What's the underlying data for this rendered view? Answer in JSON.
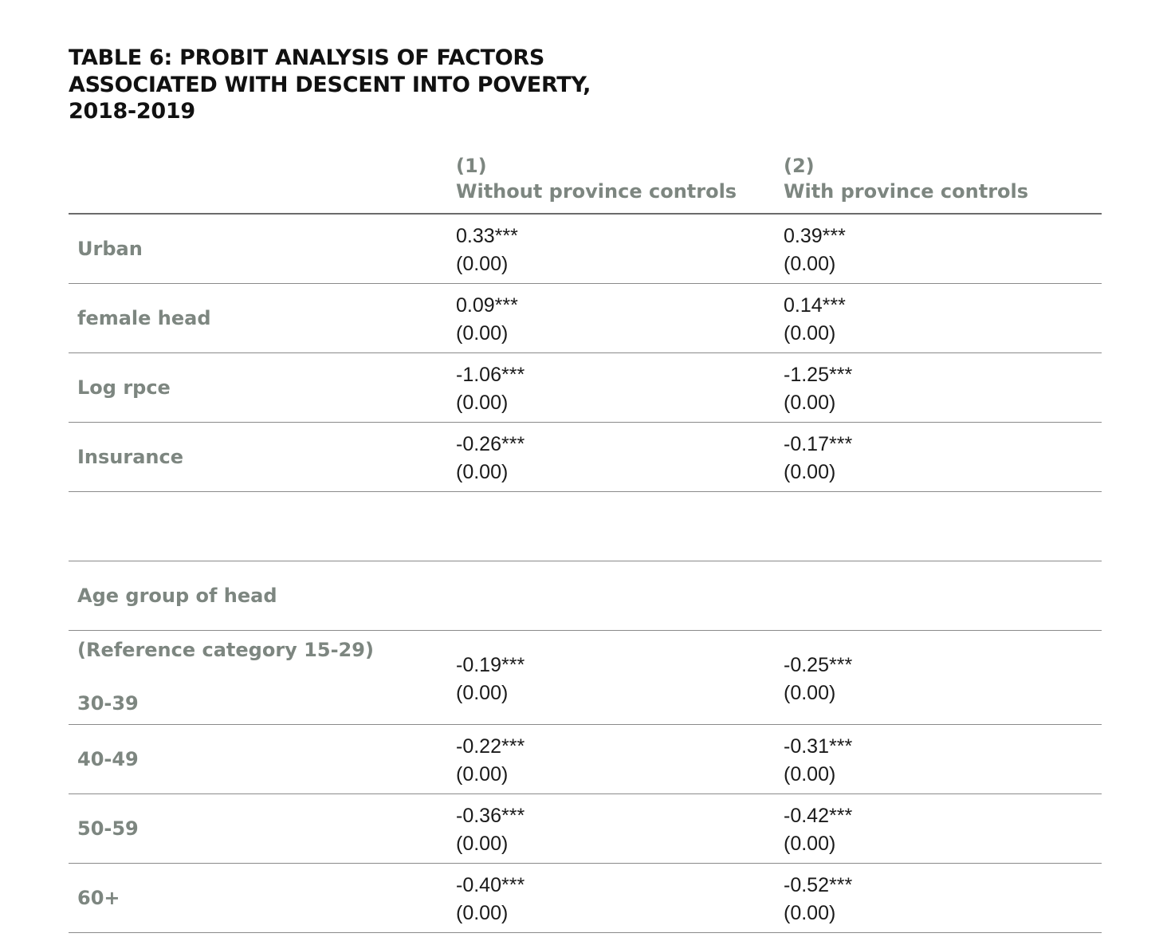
{
  "title_lines": [
    "TABLE 6: PROBIT ANALYSIS OF FACTORS",
    "ASSOCIATED WITH DESCENT INTO POVERTY,",
    "2018-2019"
  ],
  "columns": [
    {
      "number": "(1)",
      "label": "Without province controls"
    },
    {
      "number": "(2)",
      "label": "With province controls"
    }
  ],
  "rows": {
    "urban": {
      "label": "Urban",
      "c1": {
        "coef": "0.33***",
        "se": "(0.00)"
      },
      "c2": {
        "coef": "0.39***",
        "se": "(0.00)"
      }
    },
    "female_head": {
      "label": "female head",
      "c1": {
        "coef": "0.09***",
        "se": "(0.00)"
      },
      "c2": {
        "coef": "0.14***",
        "se": "(0.00)"
      }
    },
    "log_rpce": {
      "label": "Log rpce",
      "c1": {
        "coef": "-1.06***",
        "se": "(0.00)"
      },
      "c2": {
        "coef": "-1.25***",
        "se": "(0.00)"
      }
    },
    "insurance": {
      "label": "Insurance",
      "c1": {
        "coef": "-0.26***",
        "se": "(0.00)"
      },
      "c2": {
        "coef": "-0.17***",
        "se": "(0.00)"
      }
    },
    "age_group_header": {
      "label": "Age group of head"
    },
    "age_30_39": {
      "reference_label": "(Reference category 15-29)",
      "label": "30-39",
      "c1": {
        "coef": "-0.19***",
        "se": "(0.00)"
      },
      "c2": {
        "coef": "-0.25***",
        "se": "(0.00)"
      }
    },
    "age_40_49": {
      "label": "40-49",
      "c1": {
        "coef": "-0.22***",
        "se": "(0.00)"
      },
      "c2": {
        "coef": "-0.31***",
        "se": "(0.00)"
      }
    },
    "age_50_59": {
      "label": "50-59",
      "c1": {
        "coef": "-0.36***",
        "se": "(0.00)"
      },
      "c2": {
        "coef": "-0.42***",
        "se": "(0.00)"
      }
    },
    "age_60_plus": {
      "label": "60+",
      "c1": {
        "coef": "-0.40***",
        "se": "(0.00)"
      },
      "c2": {
        "coef": "-0.52***",
        "se": "(0.00)"
      }
    }
  }
}
